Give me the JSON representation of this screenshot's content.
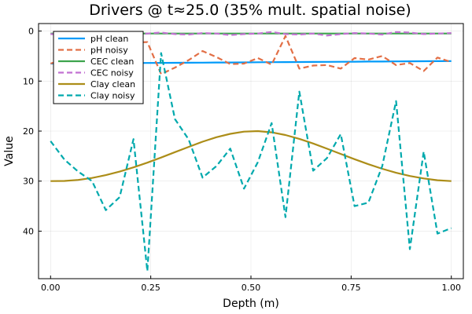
{
  "chart_data": {
    "type": "line",
    "title": "Drivers @ t≈25.0 (35% mult. spatial noise)",
    "xlabel": "Depth (m)",
    "ylabel": "Value",
    "xlim": [
      -0.03,
      1.03
    ],
    "ylim": [
      49.5,
      -1.5
    ],
    "y_inverted": true,
    "grid": true,
    "legend_position": "top-left",
    "xticks": [
      0.0,
      0.25,
      0.5,
      0.75,
      1.0
    ],
    "xtick_labels": [
      "0.00",
      "0.25",
      "0.50",
      "0.75",
      "1.00"
    ],
    "yticks": [
      0,
      10,
      20,
      30,
      40
    ],
    "ytick_labels": [
      "0",
      "10",
      "20",
      "30",
      "40"
    ],
    "x": [
      0.0,
      0.0345,
      0.069,
      0.1034,
      0.1379,
      0.1724,
      0.2069,
      0.2414,
      0.2759,
      0.3103,
      0.3448,
      0.3793,
      0.4138,
      0.4483,
      0.4828,
      0.5172,
      0.5517,
      0.5862,
      0.6207,
      0.6552,
      0.6897,
      0.7241,
      0.7586,
      0.7931,
      0.8276,
      0.8621,
      0.8966,
      0.931,
      0.9655,
      1.0
    ],
    "series": [
      {
        "name": "pH clean",
        "color": "#009af9",
        "dash": "solid",
        "values": [
          6.5,
          6.48,
          6.47,
          6.45,
          6.43,
          6.41,
          6.4,
          6.38,
          6.36,
          6.34,
          6.33,
          6.31,
          6.29,
          6.28,
          6.26,
          6.24,
          6.22,
          6.21,
          6.19,
          6.17,
          6.16,
          6.14,
          6.12,
          6.1,
          6.09,
          6.07,
          6.05,
          6.03,
          6.02,
          6.0
        ]
      },
      {
        "name": "pH noisy",
        "color": "#e26f46",
        "dash": "dashed",
        "values": [
          6.5,
          5.6,
          5.2,
          4.8,
          4.6,
          3.9,
          2.3,
          2.2,
          8.6,
          7.3,
          5.8,
          4.0,
          5.2,
          6.6,
          6.5,
          5.4,
          6.7,
          1.0,
          7.5,
          6.9,
          6.8,
          7.5,
          5.4,
          5.7,
          5.0,
          6.8,
          6.4,
          8.0,
          5.3,
          6.2
        ]
      },
      {
        "name": "CEC clean",
        "color": "#3da44d",
        "dash": "solid",
        "values": [
          0.5,
          0.5,
          0.5,
          0.5,
          0.5,
          0.5,
          0.5,
          0.5,
          0.5,
          0.5,
          0.5,
          0.5,
          0.5,
          0.5,
          0.5,
          0.5,
          0.5,
          0.5,
          0.5,
          0.5,
          0.5,
          0.5,
          0.5,
          0.5,
          0.5,
          0.5,
          0.5,
          0.5,
          0.5,
          0.5
        ]
      },
      {
        "name": "CEC noisy",
        "color": "#c271d2",
        "dash": "dashed",
        "values": [
          0.6,
          0.7,
          0.5,
          0.8,
          0.4,
          0.6,
          0.9,
          0.5,
          0.3,
          0.6,
          0.7,
          0.4,
          0.5,
          0.8,
          0.6,
          0.5,
          0.2,
          0.6,
          0.7,
          0.5,
          0.9,
          0.6,
          0.4,
          0.5,
          0.7,
          0.2,
          0.3,
          0.6,
          0.5,
          0.4
        ]
      },
      {
        "name": "Clay clean",
        "color": "#ac8d18",
        "dash": "solid",
        "values": [
          30.0,
          29.97,
          29.76,
          29.37,
          28.8,
          28.09,
          27.25,
          26.3,
          25.28,
          24.21,
          23.15,
          22.11,
          21.23,
          20.54,
          20.11,
          20.0,
          20.25,
          20.78,
          21.55,
          22.48,
          23.51,
          24.56,
          25.62,
          26.62,
          27.53,
          28.33,
          28.97,
          29.46,
          29.82,
          30.0
        ]
      },
      {
        "name": "Clay noisy",
        "color": "#00a9ad",
        "dash": "dashed",
        "values": [
          22.0,
          25.7,
          28.1,
          30.0,
          35.8,
          33.2,
          21.6,
          48.0,
          4.4,
          17.6,
          21.7,
          29.3,
          27.0,
          23.5,
          31.5,
          26.2,
          18.4,
          37.2,
          12.1,
          27.9,
          25.4,
          20.6,
          35.0,
          34.3,
          27.0,
          14.0,
          43.6,
          24.1,
          40.5,
          39.4
        ]
      }
    ]
  }
}
